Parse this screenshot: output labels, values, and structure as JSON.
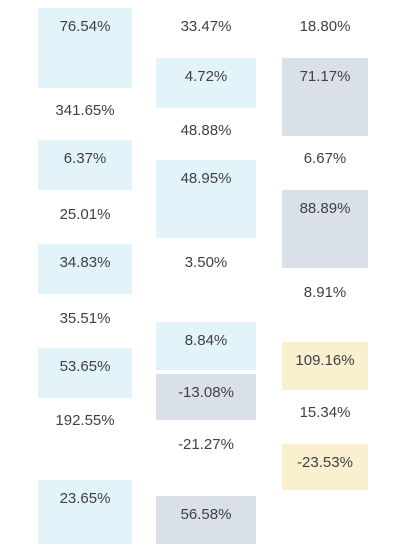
{
  "columns": [
    {
      "cells": [
        {
          "value": "76.54%",
          "fill": "blue"
        },
        {
          "value": "341.65%",
          "fill": "none"
        },
        {
          "value": "6.37%",
          "fill": "blue"
        },
        {
          "value": "25.01%",
          "fill": "none"
        },
        {
          "value": "34.83%",
          "fill": "blue"
        },
        {
          "value": "35.51%",
          "fill": "none"
        },
        {
          "value": "53.65%",
          "fill": "blue"
        },
        {
          "value": "192.55%",
          "fill": "none"
        },
        {
          "value": "23.65%",
          "fill": "blue"
        }
      ]
    },
    {
      "cells": [
        {
          "value": "33.47%",
          "fill": "none"
        },
        {
          "value": "4.72%",
          "fill": "blue"
        },
        {
          "value": "48.88%",
          "fill": "none"
        },
        {
          "value": "48.95%",
          "fill": "blue"
        },
        {
          "value": "3.50%",
          "fill": "none"
        },
        {
          "value": "8.84%",
          "fill": "blue"
        },
        {
          "value": "-13.08%",
          "fill": "slate"
        },
        {
          "value": "-21.27%",
          "fill": "none"
        },
        {
          "value": "56.58%",
          "fill": "slate"
        }
      ]
    },
    {
      "cells": [
        {
          "value": "18.80%",
          "fill": "none"
        },
        {
          "value": "71.17%",
          "fill": "slate"
        },
        {
          "value": "6.67%",
          "fill": "none"
        },
        {
          "value": "88.89%",
          "fill": "slate"
        },
        {
          "value": "8.91%",
          "fill": "none"
        },
        {
          "value": "109.16%",
          "fill": "sand"
        },
        {
          "value": "15.34%",
          "fill": "none"
        },
        {
          "value": "-23.53%",
          "fill": "sand"
        }
      ]
    }
  ],
  "colors": {
    "blue": "#e3f3fa",
    "slate": "#dae0e8",
    "sand": "#faf0cf",
    "text": "#3f3f46"
  }
}
